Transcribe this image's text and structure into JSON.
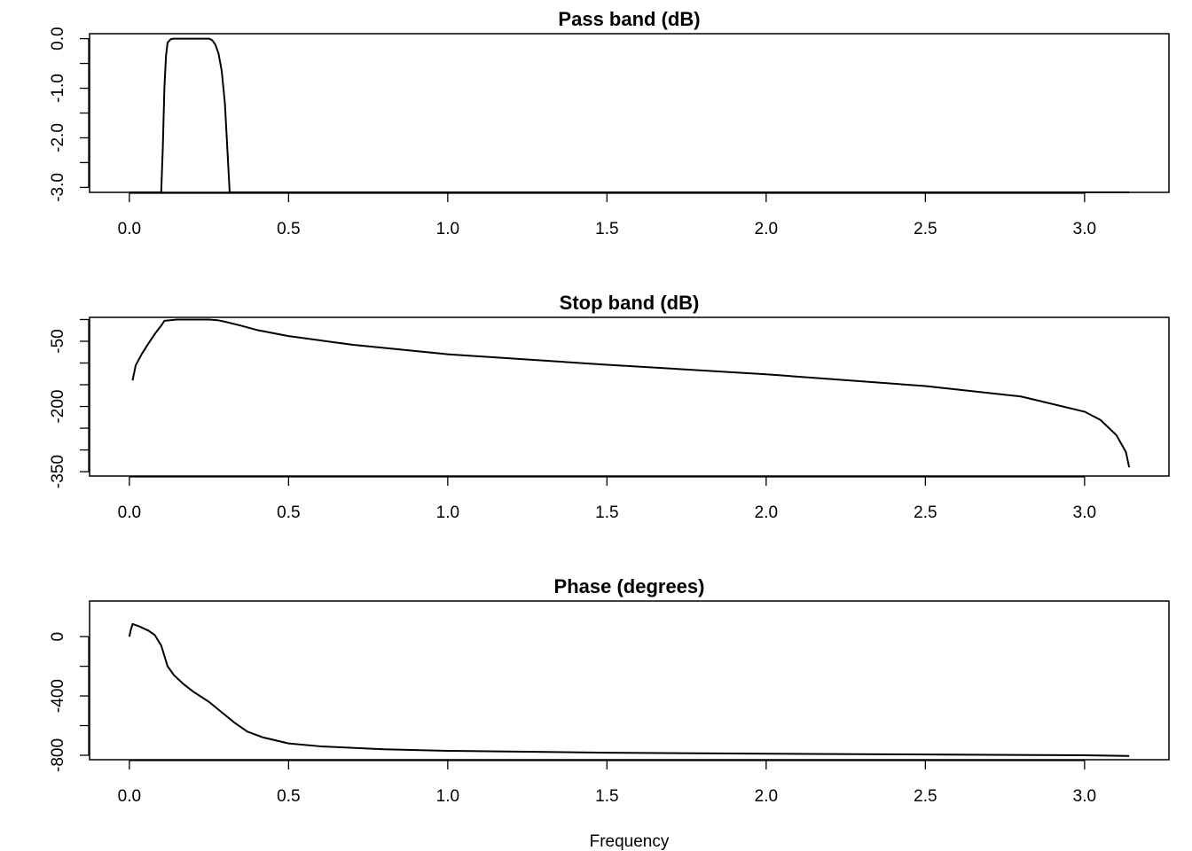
{
  "chart_data": [
    {
      "type": "line",
      "title": "Pass band (dB)",
      "xlabel": "",
      "ylabel": "",
      "xlim": [
        -0.125,
        3.265
      ],
      "ylim": [
        -3.1,
        0.1
      ],
      "x_ticks": [
        0.0,
        0.5,
        1.0,
        1.5,
        2.0,
        2.5,
        3.0
      ],
      "x_tick_labels": [
        "0.0",
        "0.5",
        "1.0",
        "1.5",
        "2.0",
        "2.5",
        "3.0"
      ],
      "y_ticks": [
        0.0,
        -0.5,
        -1.0,
        -1.5,
        -2.0,
        -2.5,
        -3.0
      ],
      "y_tick_labels": [
        "0.0",
        "",
        "-1.0",
        "",
        "-2.0",
        "",
        "-3.0"
      ],
      "grid": false,
      "series": [
        {
          "x": [
            0.0,
            0.1,
            0.105,
            0.11,
            0.115,
            0.12,
            0.13,
            0.14,
            0.15,
            0.2,
            0.25,
            0.26,
            0.27,
            0.28,
            0.29,
            0.3,
            0.31,
            0.315,
            0.5,
            1.0,
            1.5,
            2.0,
            2.5,
            3.0,
            3.14
          ],
          "y": [
            -3.1,
            -3.1,
            -2.2,
            -1.0,
            -0.35,
            -0.08,
            -0.01,
            0.0,
            0.0,
            0.0,
            0.0,
            -0.03,
            -0.12,
            -0.3,
            -0.65,
            -1.3,
            -2.5,
            -3.1,
            -3.1,
            -3.1,
            -3.1,
            -3.1,
            -3.1,
            -3.1,
            -3.1
          ]
        }
      ]
    },
    {
      "type": "line",
      "title": "Stop band (dB)",
      "xlabel": "",
      "ylabel": "",
      "xlim": [
        -0.125,
        3.265
      ],
      "ylim": [
        -360,
        5
      ],
      "x_ticks": [
        0.0,
        0.5,
        1.0,
        1.5,
        2.0,
        2.5,
        3.0
      ],
      "x_tick_labels": [
        "0.0",
        "0.5",
        "1.0",
        "1.5",
        "2.0",
        "2.5",
        "3.0"
      ],
      "y_ticks": [
        0,
        -50,
        -100,
        -150,
        -200,
        -250,
        -300,
        -350
      ],
      "y_tick_labels": [
        "",
        "-50",
        "",
        "",
        "-200",
        "",
        "",
        "-350"
      ],
      "grid": false,
      "series": [
        {
          "x": [
            0.01,
            0.02,
            0.04,
            0.06,
            0.08,
            0.1,
            0.11,
            0.15,
            0.2,
            0.25,
            0.28,
            0.3,
            0.35,
            0.4,
            0.5,
            0.7,
            1.0,
            1.5,
            2.0,
            2.5,
            2.8,
            3.0,
            3.05,
            3.1,
            3.13,
            3.14
          ],
          "y": [
            -140,
            -105,
            -78,
            -55,
            -33,
            -14,
            -3,
            0,
            0,
            0,
            -2,
            -5,
            -14,
            -24,
            -38,
            -58,
            -80,
            -104,
            -126,
            -153,
            -177,
            -212,
            -231,
            -266,
            -305,
            -340
          ]
        }
      ]
    },
    {
      "type": "line",
      "title": "Phase (degrees)",
      "xlabel": "Frequency",
      "ylabel": "",
      "xlim": [
        -0.125,
        3.265
      ],
      "ylim": [
        -830,
        240
      ],
      "x_ticks": [
        0.0,
        0.5,
        1.0,
        1.5,
        2.0,
        2.5,
        3.0
      ],
      "x_tick_labels": [
        "0.0",
        "0.5",
        "1.0",
        "1.5",
        "2.0",
        "2.5",
        "3.0"
      ],
      "y_ticks": [
        0,
        -200,
        -400,
        -600,
        -800
      ],
      "y_tick_labels": [
        "0",
        "",
        "-400",
        "",
        "-800"
      ],
      "grid": false,
      "series": [
        {
          "x": [
            0.0,
            0.005,
            0.01,
            0.03,
            0.06,
            0.08,
            0.1,
            0.12,
            0.14,
            0.17,
            0.2,
            0.25,
            0.29,
            0.33,
            0.37,
            0.42,
            0.5,
            0.6,
            0.8,
            1.0,
            1.5,
            2.0,
            2.5,
            3.0,
            3.14
          ],
          "y": [
            0,
            50,
            85,
            70,
            40,
            10,
            -60,
            -200,
            -260,
            -320,
            -370,
            -440,
            -510,
            -580,
            -640,
            -680,
            -720,
            -740,
            -760,
            -770,
            -783,
            -790,
            -795,
            -800,
            -805
          ]
        }
      ]
    }
  ]
}
